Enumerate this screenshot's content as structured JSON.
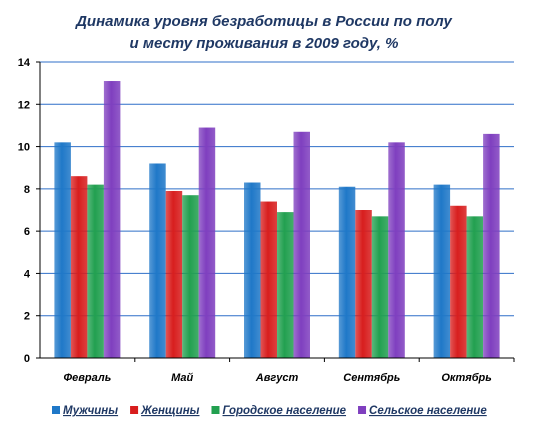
{
  "chart_data": {
    "type": "bar",
    "title": [
      "Динамика уровня  безработицы в России по полу",
      "и месту проживания в 2009 году, %"
    ],
    "categories": [
      "Февраль",
      "Май",
      "Август",
      "Сентябрь",
      "Октябрь"
    ],
    "ylim": [
      0,
      14
    ],
    "yticks": [
      0,
      2,
      4,
      6,
      8,
      10,
      12,
      14
    ],
    "grid": true,
    "legend_position": "bottom",
    "series": [
      {
        "name": "Мужчины",
        "color": "#1f78c8",
        "values": [
          10.2,
          9.2,
          8.3,
          8.1,
          8.2
        ]
      },
      {
        "name": "Женщины",
        "color": "#d81e1e",
        "values": [
          8.6,
          7.9,
          7.4,
          7.0,
          7.2
        ]
      },
      {
        "name": "Городское население",
        "color": "#22a050",
        "values": [
          8.2,
          7.7,
          6.9,
          6.7,
          6.7
        ]
      },
      {
        "name": "Сельское население",
        "color": "#7f3fbf",
        "values": [
          13.1,
          10.9,
          10.7,
          10.2,
          10.6
        ]
      }
    ]
  }
}
